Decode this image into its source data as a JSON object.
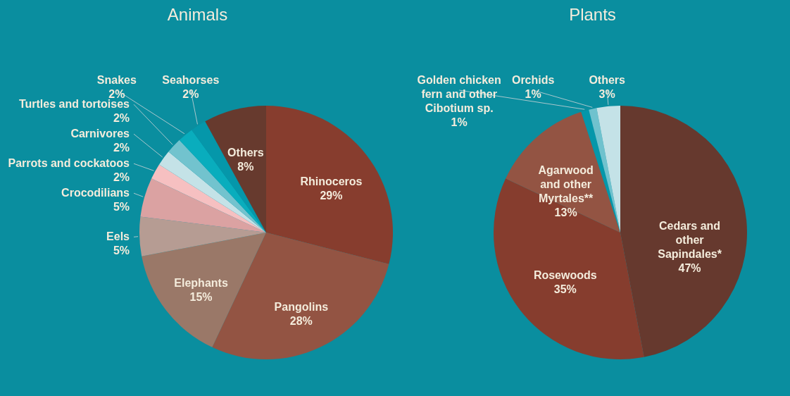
{
  "chart_data": [
    {
      "type": "pie",
      "title": "Animals",
      "categories": [
        "Rhinoceros",
        "Pangolins",
        "Elephants",
        "Eels",
        "Crocodilians",
        "Parrots and cockatoos",
        "Carnivores",
        "Turtles and tortoises",
        "Snakes",
        "Seahorses",
        "Others"
      ],
      "values": [
        29,
        28,
        15,
        5,
        5,
        2,
        2,
        2,
        2,
        2,
        8
      ],
      "value_labels": [
        "29%",
        "28%",
        "15%",
        "5%",
        "5%",
        "2%",
        "2%",
        "2%",
        "2%",
        "2%",
        "8%"
      ],
      "colors": [
        "#873d2e",
        "#935443",
        "#9a7868",
        "#b69c93",
        "#dba2a2",
        "#f6c0c1",
        "#c4e2e7",
        "#72c3ce",
        "#09adbd",
        "#0597aa",
        "#673a2e"
      ]
    },
    {
      "type": "pie",
      "title": "Plants",
      "categories": [
        "Cedars and other Sapindales*",
        "Rosewoods",
        "Agarwood and other Myrtales**",
        "Golden chicken fern and other Cibotium sp.",
        "Orchids",
        "Others"
      ],
      "values": [
        47,
        35,
        13,
        1,
        1,
        3
      ],
      "value_labels": [
        "47%",
        "35%",
        "13%",
        "1%",
        "1%",
        "3%"
      ],
      "colors": [
        "#66392e",
        "#863d2e",
        "#935443",
        "#0597aa",
        "#6fc2ce",
        "#c4e2e7"
      ]
    }
  ]
}
